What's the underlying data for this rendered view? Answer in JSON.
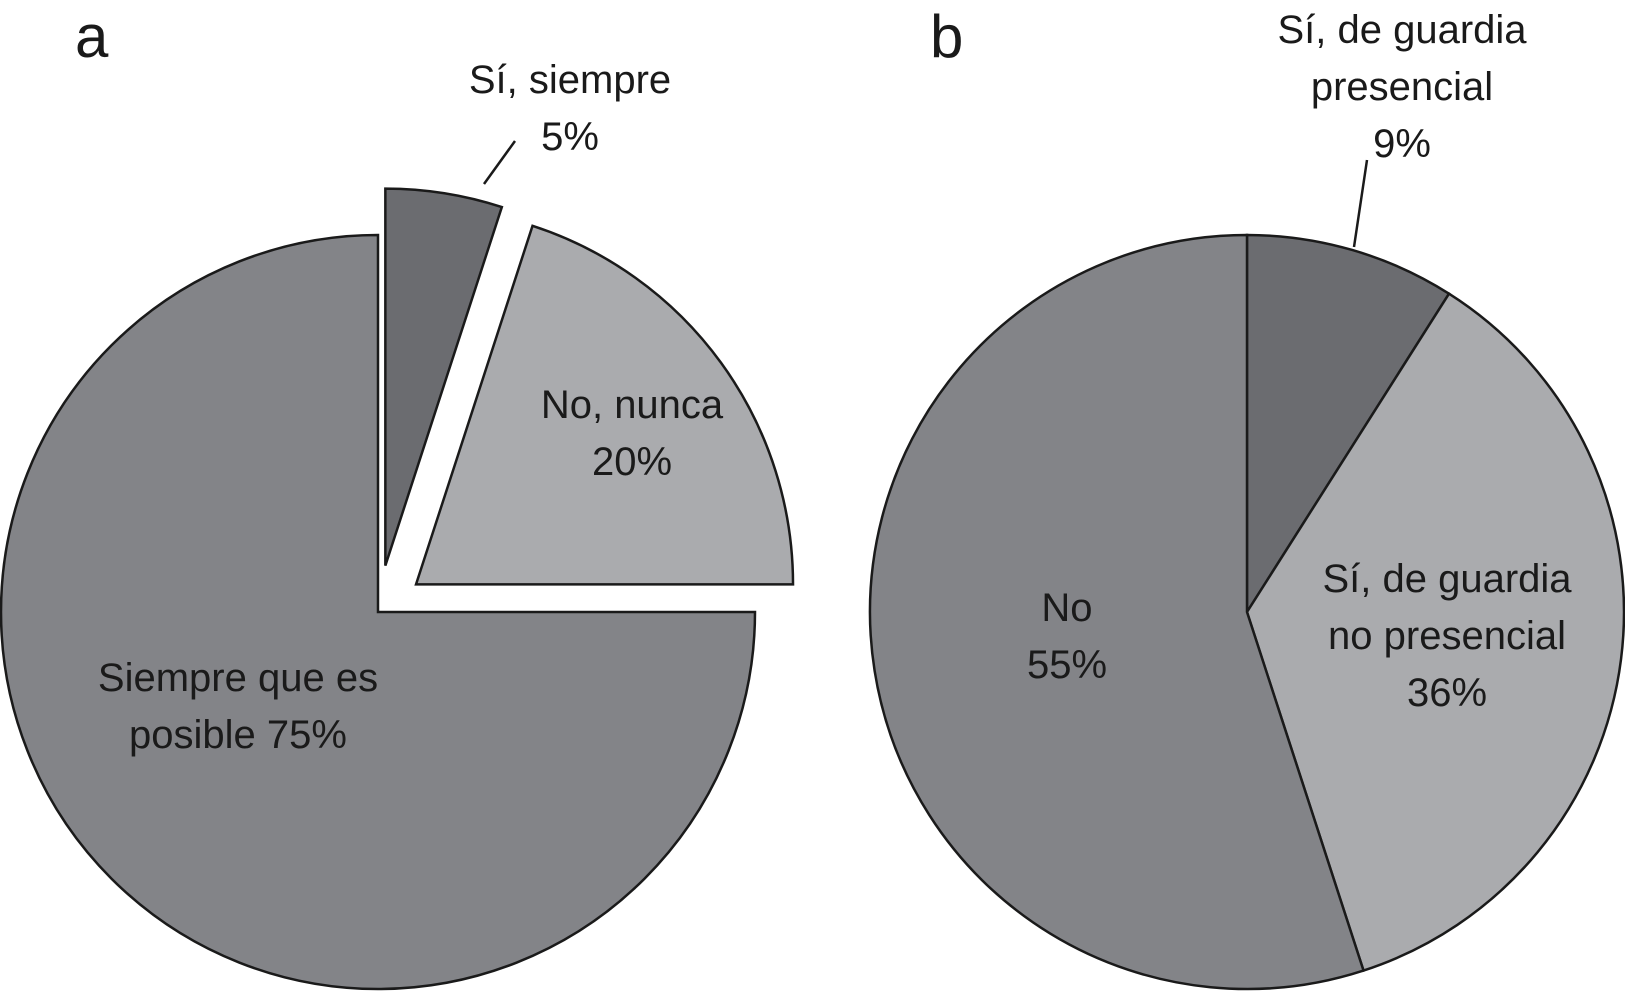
{
  "chart_data": [
    {
      "type": "pie",
      "panel_label": "a",
      "slices": [
        {
          "label_lines": [
            "Sí, siempre",
            "5%"
          ],
          "value": 5,
          "color": "#6b6c70",
          "exploded": true
        },
        {
          "label_lines": [
            "No, nunca",
            "20%"
          ],
          "value": 20,
          "color": "#aaabae",
          "exploded": true
        },
        {
          "label_lines": [
            "Siempre que es",
            "posible 75%"
          ],
          "value": 75,
          "color": "#838488",
          "exploded": false
        }
      ]
    },
    {
      "type": "pie",
      "panel_label": "b",
      "slices": [
        {
          "label_lines": [
            "Sí, de guardia",
            "presencial",
            "9%"
          ],
          "value": 9,
          "color": "#6b6c70",
          "exploded": false
        },
        {
          "label_lines": [
            "Sí, de guardia",
            "no presencial",
            "36%"
          ],
          "value": 36,
          "color": "#aaabae",
          "exploded": false
        },
        {
          "label_lines": [
            "No",
            "55%"
          ],
          "value": 55,
          "color": "#838488",
          "exploded": false
        }
      ]
    }
  ]
}
